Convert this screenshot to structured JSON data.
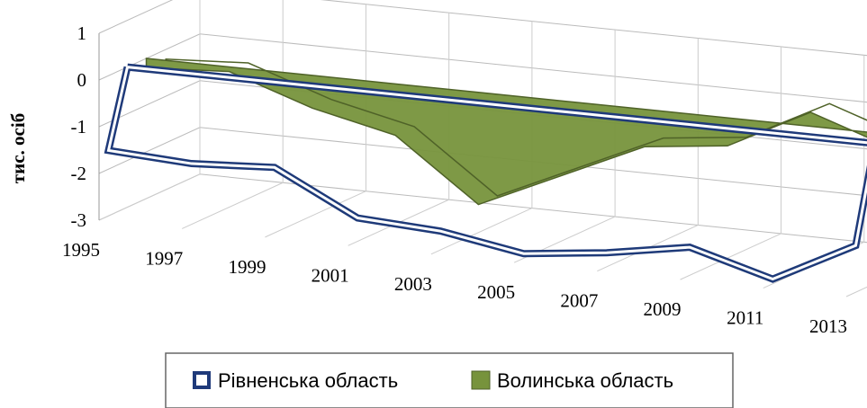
{
  "chart_data": {
    "type": "area3d",
    "y_label": "тис. осіб",
    "categories": [
      "1995",
      "1997",
      "1999",
      "2001",
      "2003",
      "2005",
      "2007",
      "2009",
      "2011",
      "2013"
    ],
    "series": [
      {
        "name": "Рівненська область",
        "color": "#1f3a7a",
        "kind": "ribbon",
        "values": [
          -1.6,
          -1.7,
          -1.6,
          -2.5,
          -2.6,
          -2.9,
          -2.7,
          -2.4,
          -2.9,
          -2.0
        ]
      },
      {
        "name": "Волинська область",
        "color": "#77933c",
        "kind": "area",
        "values": [
          -0.2,
          -0.1,
          -0.7,
          -1.1,
          -2.4,
          -1.6,
          -0.8,
          -0.6,
          0.3,
          -0.3
        ]
      }
    ],
    "ylim": [
      -3,
      1
    ],
    "yticks": [
      -3,
      -2,
      -1,
      0,
      1
    ],
    "grid": true,
    "legend": "bottom"
  }
}
